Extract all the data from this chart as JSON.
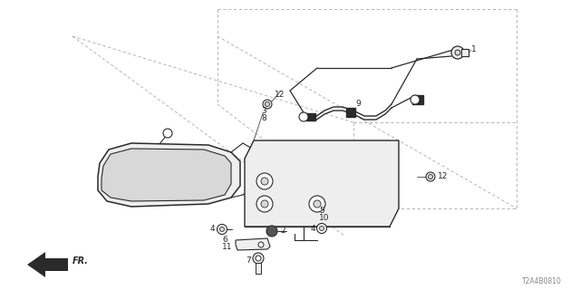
{
  "bg_color": "#ffffff",
  "diagram_code": "T2A4B0810",
  "line_color": "#2a2a2a",
  "dashed_color": "#aaaaaa",
  "gray_fill": "#d8d8d8",
  "light_fill": "#eeeeee",
  "dark_fill": "#555555"
}
